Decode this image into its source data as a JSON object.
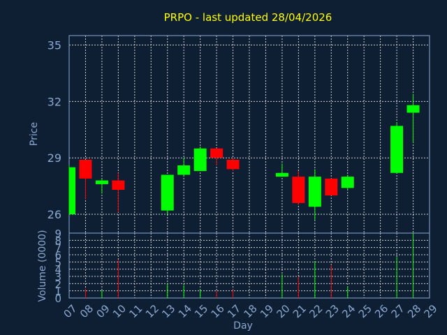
{
  "colors": {
    "background": "#0f1f33",
    "title": "#ffff00",
    "axis_text": "#8ba8d0",
    "grid": "#ffffff",
    "frame": "#8ba8d0",
    "up": "#00ff00",
    "down": "#ff0000"
  },
  "chart_data": [
    {
      "type": "candlestick",
      "title": "PRPO - last updated 28/04/2026",
      "ylabel": "Price",
      "xlabel": "",
      "ylim": [
        25.0,
        35.5
      ],
      "yticks": [
        26,
        29,
        32,
        35
      ],
      "grid": true,
      "x": [
        "07",
        "08",
        "09",
        "10",
        "11",
        "12",
        "13",
        "14",
        "15",
        "16",
        "17",
        "18",
        "19",
        "20",
        "21",
        "22",
        "23",
        "24",
        "25",
        "26",
        "27",
        "28",
        "29"
      ],
      "candles": [
        {
          "day": "07",
          "open": 26.0,
          "high": 28.6,
          "low": 26.0,
          "close": 28.5
        },
        {
          "day": "08",
          "open": 28.9,
          "high": 28.9,
          "low": 26.8,
          "close": 27.9
        },
        {
          "day": "09",
          "open": 27.6,
          "high": 27.9,
          "low": 27.1,
          "close": 27.8
        },
        {
          "day": "10",
          "open": 27.8,
          "high": 28.2,
          "low": 26.1,
          "close": 27.3
        },
        {
          "day": "13",
          "open": 26.2,
          "high": 28.1,
          "low": 26.0,
          "close": 28.1
        },
        {
          "day": "14",
          "open": 28.1,
          "high": 29.0,
          "low": 28.0,
          "close": 28.6
        },
        {
          "day": "15",
          "open": 28.3,
          "high": 29.6,
          "low": 28.3,
          "close": 29.5
        },
        {
          "day": "16",
          "open": 29.5,
          "high": 29.5,
          "low": 28.6,
          "close": 29.0
        },
        {
          "day": "17",
          "open": 28.9,
          "high": 29.0,
          "low": 28.3,
          "close": 28.4
        },
        {
          "day": "20",
          "open": 28.0,
          "high": 28.7,
          "low": 28.0,
          "close": 28.2
        },
        {
          "day": "21",
          "open": 28.0,
          "high": 28.3,
          "low": 26.5,
          "close": 26.6
        },
        {
          "day": "22",
          "open": 26.4,
          "high": 28.4,
          "low": 25.7,
          "close": 28.0
        },
        {
          "day": "23",
          "open": 27.9,
          "high": 27.9,
          "low": 27.0,
          "close": 27.0
        },
        {
          "day": "24",
          "open": 27.4,
          "high": 28.1,
          "low": 27.3,
          "close": 28.0
        },
        {
          "day": "27",
          "open": 28.2,
          "high": 30.9,
          "low": 28.2,
          "close": 30.7
        },
        {
          "day": "28",
          "open": 31.4,
          "high": 32.4,
          "low": 29.8,
          "close": 31.8
        }
      ]
    },
    {
      "type": "bar",
      "ylabel": "Volume (0000)",
      "xlabel": "Day",
      "ylim": [
        0,
        9
      ],
      "yticks": [
        0,
        1,
        2,
        3,
        4,
        5,
        6,
        7,
        8,
        9
      ],
      "grid": true,
      "categories": [
        "07",
        "08",
        "09",
        "10",
        "11",
        "12",
        "13",
        "14",
        "15",
        "16",
        "17",
        "18",
        "19",
        "20",
        "21",
        "22",
        "23",
        "24",
        "25",
        "26",
        "27",
        "28",
        "29"
      ],
      "values": [
        null,
        1.3,
        1.1,
        5.3,
        null,
        null,
        2.0,
        1.8,
        1.2,
        1.0,
        1.2,
        null,
        null,
        3.3,
        2.9,
        5.1,
        4.6,
        1.6,
        null,
        null,
        5.7,
        9.0,
        null
      ],
      "bar_direction": [
        "",
        "down",
        "up",
        "down",
        "",
        "",
        "up",
        "up",
        "up",
        "down",
        "down",
        "",
        "",
        "up",
        "down",
        "up",
        "down",
        "up",
        "",
        "",
        "up",
        "up",
        ""
      ]
    }
  ]
}
